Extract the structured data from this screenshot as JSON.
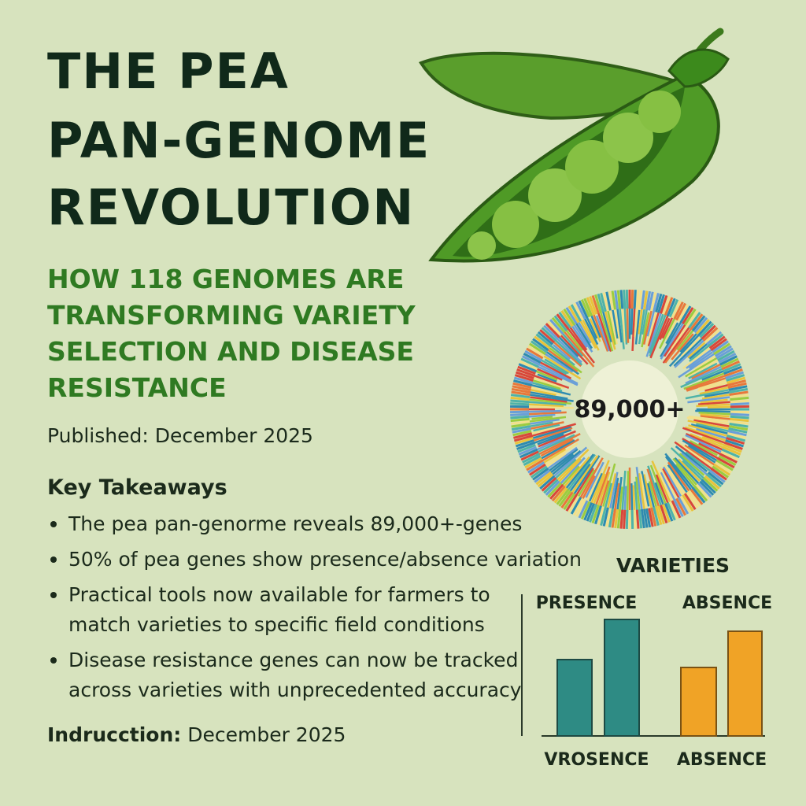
{
  "header": {
    "title_lines": [
      "THE PEA",
      "PAN-GENOME",
      "REVOLUTION"
    ],
    "subtitle_lines": [
      "HOW 118 GENOMES ARE",
      "TRANSFORMING VARIETY",
      "SELECTION AND DISEASE",
      "RESISTANCE"
    ],
    "published": "Published: December 2025"
  },
  "takeaways": {
    "heading": "Key Takeaways",
    "items": [
      [
        "The pea pan-genorme reveals 89,000+-genes"
      ],
      [
        "50% of pea genes show presence/absence variation"
      ],
      [
        "Practical tools now available for farmers to",
        "match varieties to specific field conditions"
      ],
      [
        "Disease resistance genes can now be tracked",
        "across varieties with unprecedented accuracy"
      ]
    ]
  },
  "footer": {
    "label": "Indrucction:",
    "date": "December 2025"
  },
  "ring": {
    "center_label": "89,000+"
  },
  "mini_chart": {
    "title": "VARIETIES",
    "top_labels": [
      "PRESENCE",
      "ABSENCE"
    ],
    "bottom_labels": [
      "VROSENCE",
      "ABSENCE"
    ]
  }
}
